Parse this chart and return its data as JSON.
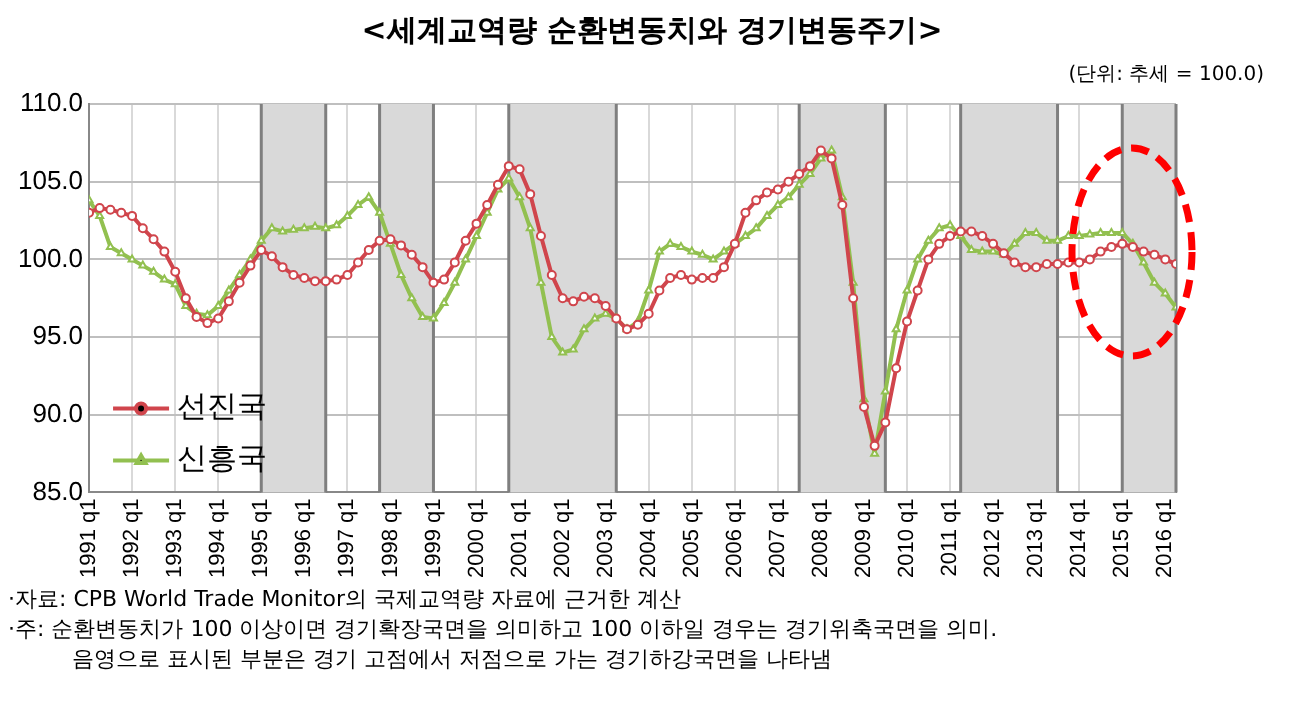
{
  "chart_data": {
    "type": "line",
    "title": "<세계교역량 순환변동치와 경기변동주기>",
    "subtitle": "(단위: 추세 = 100.0)",
    "x": [
      "1991-01",
      "1991-04",
      "1991-07",
      "1991-10",
      "1992-01",
      "1992-04",
      "1992-07",
      "1992-10",
      "1993-01",
      "1993-04",
      "1993-07",
      "1993-10",
      "1994-01",
      "1994-04",
      "1994-07",
      "1994-10",
      "1995-01",
      "1995-04",
      "1995-07",
      "1995-10",
      "1996-01",
      "1996-04",
      "1996-07",
      "1996-10",
      "1997-01",
      "1997-04",
      "1997-07",
      "1997-10",
      "1998-01",
      "1998-04",
      "1998-07",
      "1998-10",
      "1999-01",
      "1999-04",
      "1999-07",
      "1999-10",
      "2000-01",
      "2000-04",
      "2000-07",
      "2000-10",
      "2001-01",
      "2001-04",
      "2001-07",
      "2001-10",
      "2002-01",
      "2002-04",
      "2002-07",
      "2002-10",
      "2003-01",
      "2003-04",
      "2003-07",
      "2003-10",
      "2004-01",
      "2004-04",
      "2004-07",
      "2004-10",
      "2005-01",
      "2005-04",
      "2005-07",
      "2005-10",
      "2006-01",
      "2006-04",
      "2006-07",
      "2006-10",
      "2007-01",
      "2007-04",
      "2007-07",
      "2007-10",
      "2008-01",
      "2008-04",
      "2008-07",
      "2008-10",
      "2009-01",
      "2009-04",
      "2009-07",
      "2009-10",
      "2010-01",
      "2010-04",
      "2010-07",
      "2010-10",
      "2011-01",
      "2011-04",
      "2011-07",
      "2011-10",
      "2012-01",
      "2012-04",
      "2012-07",
      "2012-10",
      "2013-01",
      "2013-04",
      "2013-07",
      "2013-10",
      "2014-01",
      "2014-04",
      "2014-07",
      "2014-10",
      "2015-01",
      "2015-04",
      "2015-07",
      "2015-10",
      "2016-01",
      "2016-04"
    ],
    "series": [
      {
        "name": "선진국",
        "color": "#d0454c",
        "marker": "circle",
        "values": [
          103.0,
          103.3,
          103.2,
          103.0,
          102.8,
          102.0,
          101.3,
          100.5,
          99.2,
          97.5,
          96.3,
          95.9,
          96.2,
          97.3,
          98.5,
          99.6,
          100.6,
          100.2,
          99.5,
          99.0,
          98.8,
          98.6,
          98.6,
          98.7,
          99.0,
          99.8,
          100.6,
          101.2,
          101.3,
          100.9,
          100.3,
          99.5,
          98.5,
          98.7,
          99.8,
          101.2,
          102.3,
          103.5,
          104.8,
          106.0,
          105.8,
          104.2,
          101.5,
          99.0,
          97.5,
          97.3,
          97.6,
          97.5,
          97.0,
          96.2,
          95.5,
          95.8,
          96.5,
          98.0,
          98.8,
          99.0,
          98.7,
          98.8,
          98.8,
          99.5,
          101.0,
          103.0,
          103.8,
          104.3,
          104.5,
          105.0,
          105.5,
          106.0,
          107.0,
          106.5,
          103.5,
          97.5,
          90.5,
          88.0,
          89.5,
          93.0,
          96.0,
          98.0,
          100.0,
          101.0,
          101.5,
          101.8,
          101.8,
          101.5,
          101.0,
          100.4,
          99.8,
          99.5,
          99.5,
          99.7,
          99.7,
          99.8,
          99.8,
          100.0,
          100.5,
          100.8,
          101.0,
          100.8,
          100.5,
          100.3,
          100.0,
          99.7
        ]
      },
      {
        "name": "신흥국",
        "color": "#92c050",
        "marker": "triangle",
        "values": [
          103.8,
          102.8,
          100.8,
          100.4,
          100.0,
          99.6,
          99.2,
          98.7,
          98.4,
          97.0,
          96.5,
          96.4,
          97.0,
          98.0,
          99.0,
          100.0,
          101.2,
          102.0,
          101.8,
          101.9,
          102.0,
          102.1,
          102.0,
          102.2,
          102.8,
          103.5,
          104.0,
          103.0,
          101.0,
          99.0,
          97.5,
          96.3,
          96.2,
          97.2,
          98.5,
          100.0,
          101.5,
          103.0,
          104.5,
          105.2,
          104.0,
          102.0,
          98.5,
          95.0,
          94.0,
          94.2,
          95.5,
          96.2,
          96.5,
          96.2,
          95.5,
          96.0,
          98.0,
          100.5,
          101.0,
          100.8,
          100.5,
          100.3,
          100.0,
          100.5,
          101.0,
          101.5,
          102.0,
          102.8,
          103.5,
          104.0,
          104.8,
          105.5,
          106.5,
          107.0,
          104.0,
          98.5,
          91.0,
          87.5,
          91.5,
          95.5,
          98.0,
          100.0,
          101.2,
          102.0,
          102.2,
          101.5,
          100.6,
          100.5,
          100.5,
          100.3,
          101.0,
          101.7,
          101.7,
          101.2,
          101.2,
          101.5,
          101.5,
          101.6,
          101.7,
          101.7,
          101.7,
          101.0,
          99.8,
          98.5,
          97.8,
          96.9
        ]
      }
    ],
    "xlim": [
      "1991-01",
      "2016-04"
    ],
    "xticks": [
      {
        "value": "1991-01",
        "label": "1991 q1"
      },
      {
        "value": "1992-01",
        "label": "1992 q1"
      },
      {
        "value": "1993-01",
        "label": "1993 q1"
      },
      {
        "value": "1994-01",
        "label": "1994 q1"
      },
      {
        "value": "1995-01",
        "label": "1995 q1"
      },
      {
        "value": "1996-01",
        "label": "1996 q1"
      },
      {
        "value": "1997-01",
        "label": "1997 q1"
      },
      {
        "value": "1998-01",
        "label": "1998 q1"
      },
      {
        "value": "1999-01",
        "label": "1999 q1"
      },
      {
        "value": "2000-01",
        "label": "2000 q1"
      },
      {
        "value": "2001-01",
        "label": "2001 q1"
      },
      {
        "value": "2002-01",
        "label": "2002 q1"
      },
      {
        "value": "2003-01",
        "label": "2003 q1"
      },
      {
        "value": "2004-01",
        "label": "2004 q1"
      },
      {
        "value": "2005-01",
        "label": "2005 q1"
      },
      {
        "value": "2006-01",
        "label": "2006 q1"
      },
      {
        "value": "2007-01",
        "label": "2007 q1"
      },
      {
        "value": "2008-01",
        "label": "2008 q1"
      },
      {
        "value": "2009-01",
        "label": "2009 q1"
      },
      {
        "value": "2010-01",
        "label": "2010 q1"
      },
      {
        "value": "2011-01",
        "label": "2011 q1"
      },
      {
        "value": "2012-01",
        "label": "2012 q1"
      },
      {
        "value": "2013-01",
        "label": "2013 q1"
      },
      {
        "value": "2014-01",
        "label": "2014 q1"
      },
      {
        "value": "2015-01",
        "label": "2015 q1"
      },
      {
        "value": "2016-01",
        "label": "2016 q1"
      }
    ],
    "ylim": [
      85,
      110
    ],
    "yticks": [
      {
        "value": 85,
        "label": "85.0"
      },
      {
        "value": 90,
        "label": "90.0"
      },
      {
        "value": 95,
        "label": "95.0"
      },
      {
        "value": 100,
        "label": "100.0"
      },
      {
        "value": 105,
        "label": "105.0"
      },
      {
        "value": 110,
        "label": "110.0"
      }
    ],
    "bands": [
      {
        "axis": "x",
        "from": "1995-01",
        "to": "1996-07",
        "color": "#d9d9d9"
      },
      {
        "axis": "x",
        "from": "1997-10",
        "to": "1999-01",
        "color": "#d9d9d9"
      },
      {
        "axis": "x",
        "from": "2000-10",
        "to": "2003-04",
        "color": "#d9d9d9"
      },
      {
        "axis": "x",
        "from": "2007-07",
        "to": "2009-07",
        "color": "#d9d9d9"
      },
      {
        "axis": "x",
        "from": "2011-04",
        "to": "2013-07",
        "color": "#d9d9d9"
      },
      {
        "axis": "x",
        "from": "2015-01",
        "to": "2016-04",
        "color": "#d9d9d9"
      }
    ],
    "grid": true,
    "legend": "bottom left",
    "line_style": "solid",
    "annotations": [
      "·자료: CPB World Trade Monitor의 국제교역량 자료에 근거한 계산",
      "·주: 순환변동치가 100 이상이면 경기확장국면을 의미하고 100 이하일 경우는 경기위축국면을 의미.",
      "음영으로 표시된 부분은 경기 고점에서 저점으로 가는 경기하강국면을 나타냄"
    ]
  }
}
